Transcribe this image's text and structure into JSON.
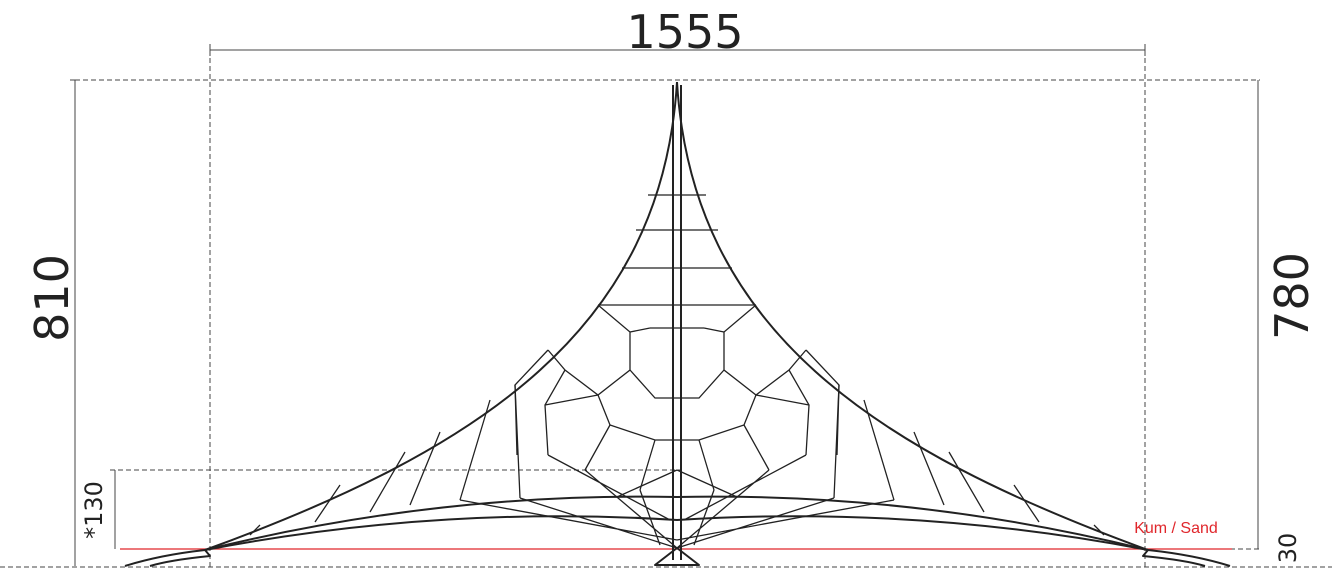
{
  "dimensions": {
    "width": "1555",
    "total_height": "810",
    "height": "780",
    "free_fall_height": "*130",
    "foundation_depth": "30"
  },
  "ground_label": "Kum / Sand"
}
